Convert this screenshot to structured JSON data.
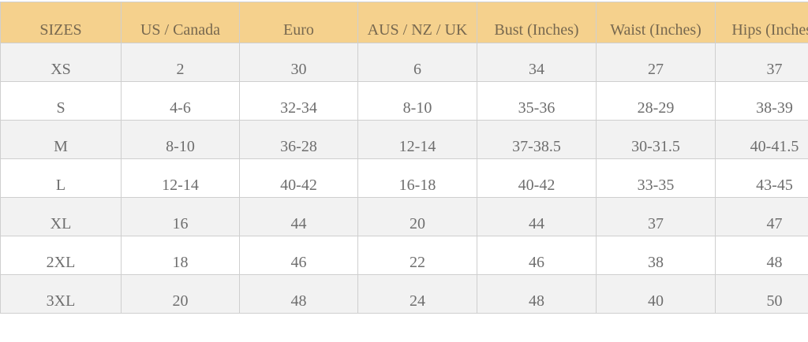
{
  "colors": {
    "header_bg": "#f5d18d",
    "header_text": "#77684f",
    "row_alt_bg": "#f2f2f2",
    "cell_text": "#6e6e6e",
    "border": "#cfcfcf"
  },
  "headers": [
    "SIZES",
    "US / Canada",
    "Euro",
    "AUS / NZ / UK",
    "Bust (Inches)",
    "Waist (Inches)",
    "Hips (Inches)"
  ],
  "rows": [
    [
      "XS",
      "2",
      "30",
      "6",
      "34",
      "27",
      "37"
    ],
    [
      "S",
      "4-6",
      "32-34",
      "8-10",
      "35-36",
      "28-29",
      "38-39"
    ],
    [
      "M",
      "8-10",
      "36-28",
      "12-14",
      "37-38.5",
      "30-31.5",
      "40-41.5"
    ],
    [
      "L",
      "12-14",
      "40-42",
      "16-18",
      "40-42",
      "33-35",
      "43-45"
    ],
    [
      "XL",
      "16",
      "44",
      "20",
      "44",
      "37",
      "47"
    ],
    [
      "2XL",
      "18",
      "46",
      "22",
      "46",
      "38",
      "48"
    ],
    [
      "3XL",
      "20",
      "48",
      "24",
      "48",
      "40",
      "50"
    ]
  ]
}
